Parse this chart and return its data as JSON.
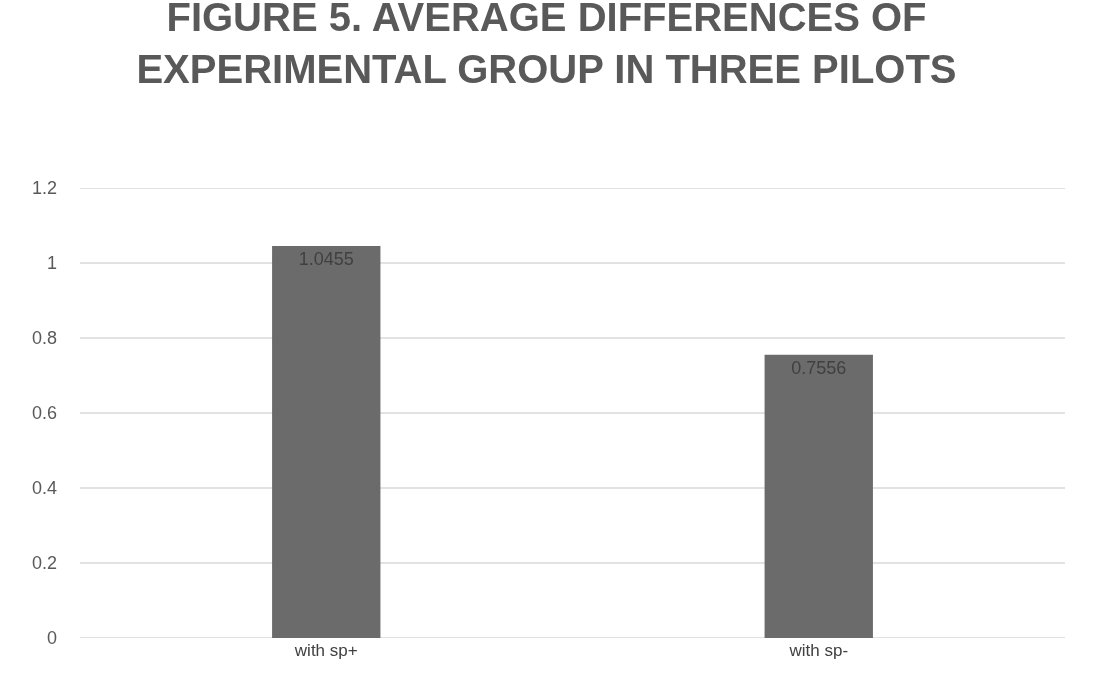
{
  "chart_data": {
    "type": "bar",
    "title": "FIGURE 5. AVERAGE DIFFERENCES OF EXPERIMENTAL GROUP IN THREE PILOTS",
    "categories": [
      "with sp+",
      "with sp-"
    ],
    "values": [
      1.0455,
      0.7556
    ],
    "color": "#6b6b6b",
    "ylim": [
      0,
      1.2
    ],
    "yticks": [
      0,
      0.2,
      0.4,
      0.6,
      0.8,
      1,
      1.2
    ],
    "grid": "y",
    "data_labels": true
  }
}
